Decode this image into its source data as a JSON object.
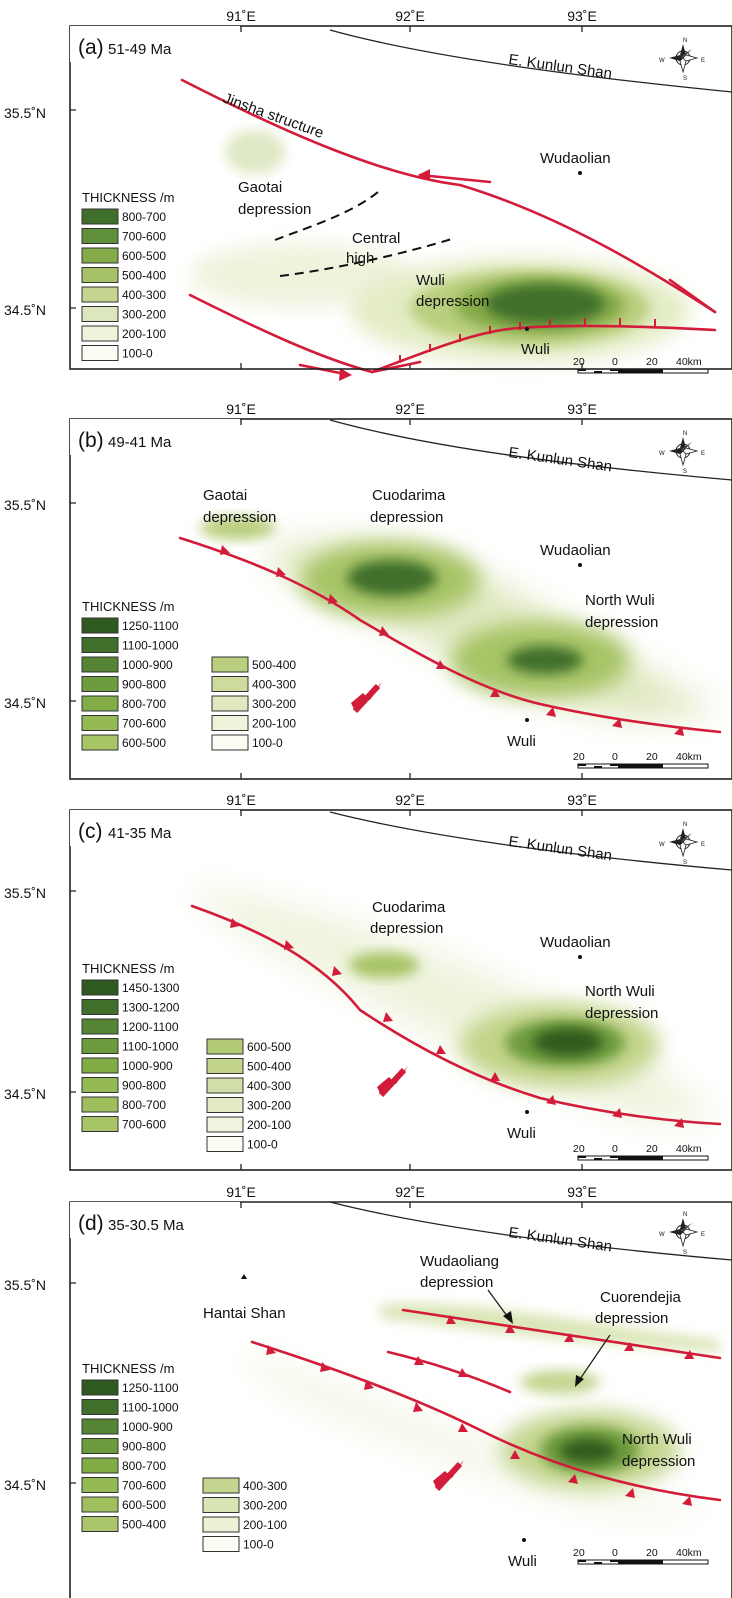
{
  "lon_labels": [
    "91˚E",
    "92˚E",
    "93˚E"
  ],
  "lat_labels": [
    "35.5˚N",
    "34.5˚N"
  ],
  "compass": {
    "n": "N",
    "e": "E",
    "s": "S",
    "w": "W"
  },
  "scalebar": {
    "labels": [
      "20",
      "0",
      "20",
      "40km"
    ]
  },
  "colors": {
    "fault": "#d21c3a",
    "basin_dark": "#3f6f2a",
    "basin_light": "#f4f7e6"
  },
  "panels": [
    {
      "title": "(a)",
      "age": "51-49 Ma",
      "labels": {
        "kunlun": "E. Kunlun Shan",
        "jinsha": "Jinsha structure",
        "wudaolian": "Wudaolian",
        "gaotai_1": "Gaotai",
        "gaotai_2": "depression",
        "central_1": "Central",
        "central_2": "high",
        "wuli_dep_1": "Wuli",
        "wuli_dep_2": "depression",
        "wuli": "Wuli"
      },
      "legend_title": "THICKNESS /m",
      "legend": [
        {
          "range": "800-700",
          "color": "#3f6f2a"
        },
        {
          "range": "700-600",
          "color": "#5f8f3a"
        },
        {
          "range": "600-500",
          "color": "#86ab4a"
        },
        {
          "range": "500-400",
          "color": "#a5c067"
        },
        {
          "range": "400-300",
          "color": "#c4d690"
        },
        {
          "range": "300-200",
          "color": "#dde7bd"
        },
        {
          "range": "200-100",
          "color": "#eef3dc"
        },
        {
          "range": "100-0",
          "color": "#fbfcf4"
        }
      ]
    },
    {
      "title": "(b)",
      "age": "49-41 Ma",
      "labels": {
        "kunlun": "E. Kunlun Shan",
        "gaotai_1": "Gaotai",
        "gaotai_2": "depression",
        "cuodarima_1": "Cuodarima",
        "cuodarima_2": "depression",
        "wudaolian": "Wudaolian",
        "northwuli_1": "North Wuli",
        "northwuli_2": "depression",
        "wuli": "Wuli"
      },
      "legend_title": "THICKNESS /m",
      "legend_left": [
        {
          "range": "1250-1100",
          "color": "#2f5a1f"
        },
        {
          "range": "1100-1000",
          "color": "#3f6f2a"
        },
        {
          "range": "1000-900",
          "color": "#558434"
        },
        {
          "range": "900-800",
          "color": "#6e9b3d"
        },
        {
          "range": "800-700",
          "color": "#82ac46"
        },
        {
          "range": "700-600",
          "color": "#95b954"
        },
        {
          "range": "600-500",
          "color": "#a7c466"
        }
      ],
      "legend_right": [
        {
          "range": "500-400",
          "color": "#b9cf7e"
        },
        {
          "range": "400-300",
          "color": "#cddb9d"
        },
        {
          "range": "300-200",
          "color": "#dfe8bf"
        },
        {
          "range": "200-100",
          "color": "#eef3dc"
        },
        {
          "range": "100-0",
          "color": "#fbfcf4"
        }
      ]
    },
    {
      "title": "(c)",
      "age": "41-35 Ma",
      "labels": {
        "kunlun": "E. Kunlun Shan",
        "cuodarima_1": "Cuodarima",
        "cuodarima_2": "depression",
        "wudaolian": "Wudaolian",
        "northwuli_1": "North Wuli",
        "northwuli_2": "depression",
        "wuli": "Wuli"
      },
      "legend_title": "THICKNESS /m",
      "legend_left": [
        {
          "range": "1450-1300",
          "color": "#2f5a1f"
        },
        {
          "range": "1300-1200",
          "color": "#3f6f2a"
        },
        {
          "range": "1200-1100",
          "color": "#558434"
        },
        {
          "range": "1100-1000",
          "color": "#6e9b3d"
        },
        {
          "range": "1000-900",
          "color": "#82ac46"
        },
        {
          "range": "900-800",
          "color": "#95b954"
        },
        {
          "range": "800-700",
          "color": "#9fbf5c"
        },
        {
          "range": "700-600",
          "color": "#a7c466"
        }
      ],
      "legend_right": [
        {
          "range": "600-500",
          "color": "#b3cb75"
        },
        {
          "range": "500-400",
          "color": "#c2d48a"
        },
        {
          "range": "400-300",
          "color": "#d2deaa"
        },
        {
          "range": "300-200",
          "color": "#e2eac6"
        },
        {
          "range": "200-100",
          "color": "#eff4de"
        },
        {
          "range": "100-0",
          "color": "#fbfcf4"
        }
      ]
    },
    {
      "title": "(d)",
      "age": "35-30.5 Ma",
      "labels": {
        "kunlun": "E. Kunlun Shan",
        "hantai": "Hantai Shan",
        "wudaoliang_1": "Wudaoliang",
        "wudaoliang_2": "depression",
        "cuorendejia_1": "Cuorendejia",
        "cuorendejia_2": "depression",
        "northwuli_1": "North Wuli",
        "northwuli_2": "depression",
        "wuli": "Wuli"
      },
      "legend_title": "THICKNESS /m",
      "legend_left": [
        {
          "range": "1250-1100",
          "color": "#2f5a1f"
        },
        {
          "range": "1100-1000",
          "color": "#3f6f2a"
        },
        {
          "range": "1000-900",
          "color": "#558434"
        },
        {
          "range": "900-800",
          "color": "#6e9b3d"
        },
        {
          "range": "800-700",
          "color": "#82ac46"
        },
        {
          "range": "700-600",
          "color": "#95b954"
        },
        {
          "range": "600-500",
          "color": "#a0c05e"
        },
        {
          "range": "500-400",
          "color": "#abc66b"
        }
      ],
      "legend_right": [
        {
          "range": "400-300",
          "color": "#c4d690"
        },
        {
          "range": "300-200",
          "color": "#dae5b6"
        },
        {
          "range": "200-100",
          "color": "#ecf2d6"
        },
        {
          "range": "100-0",
          "color": "#fbfcf4"
        }
      ]
    }
  ]
}
